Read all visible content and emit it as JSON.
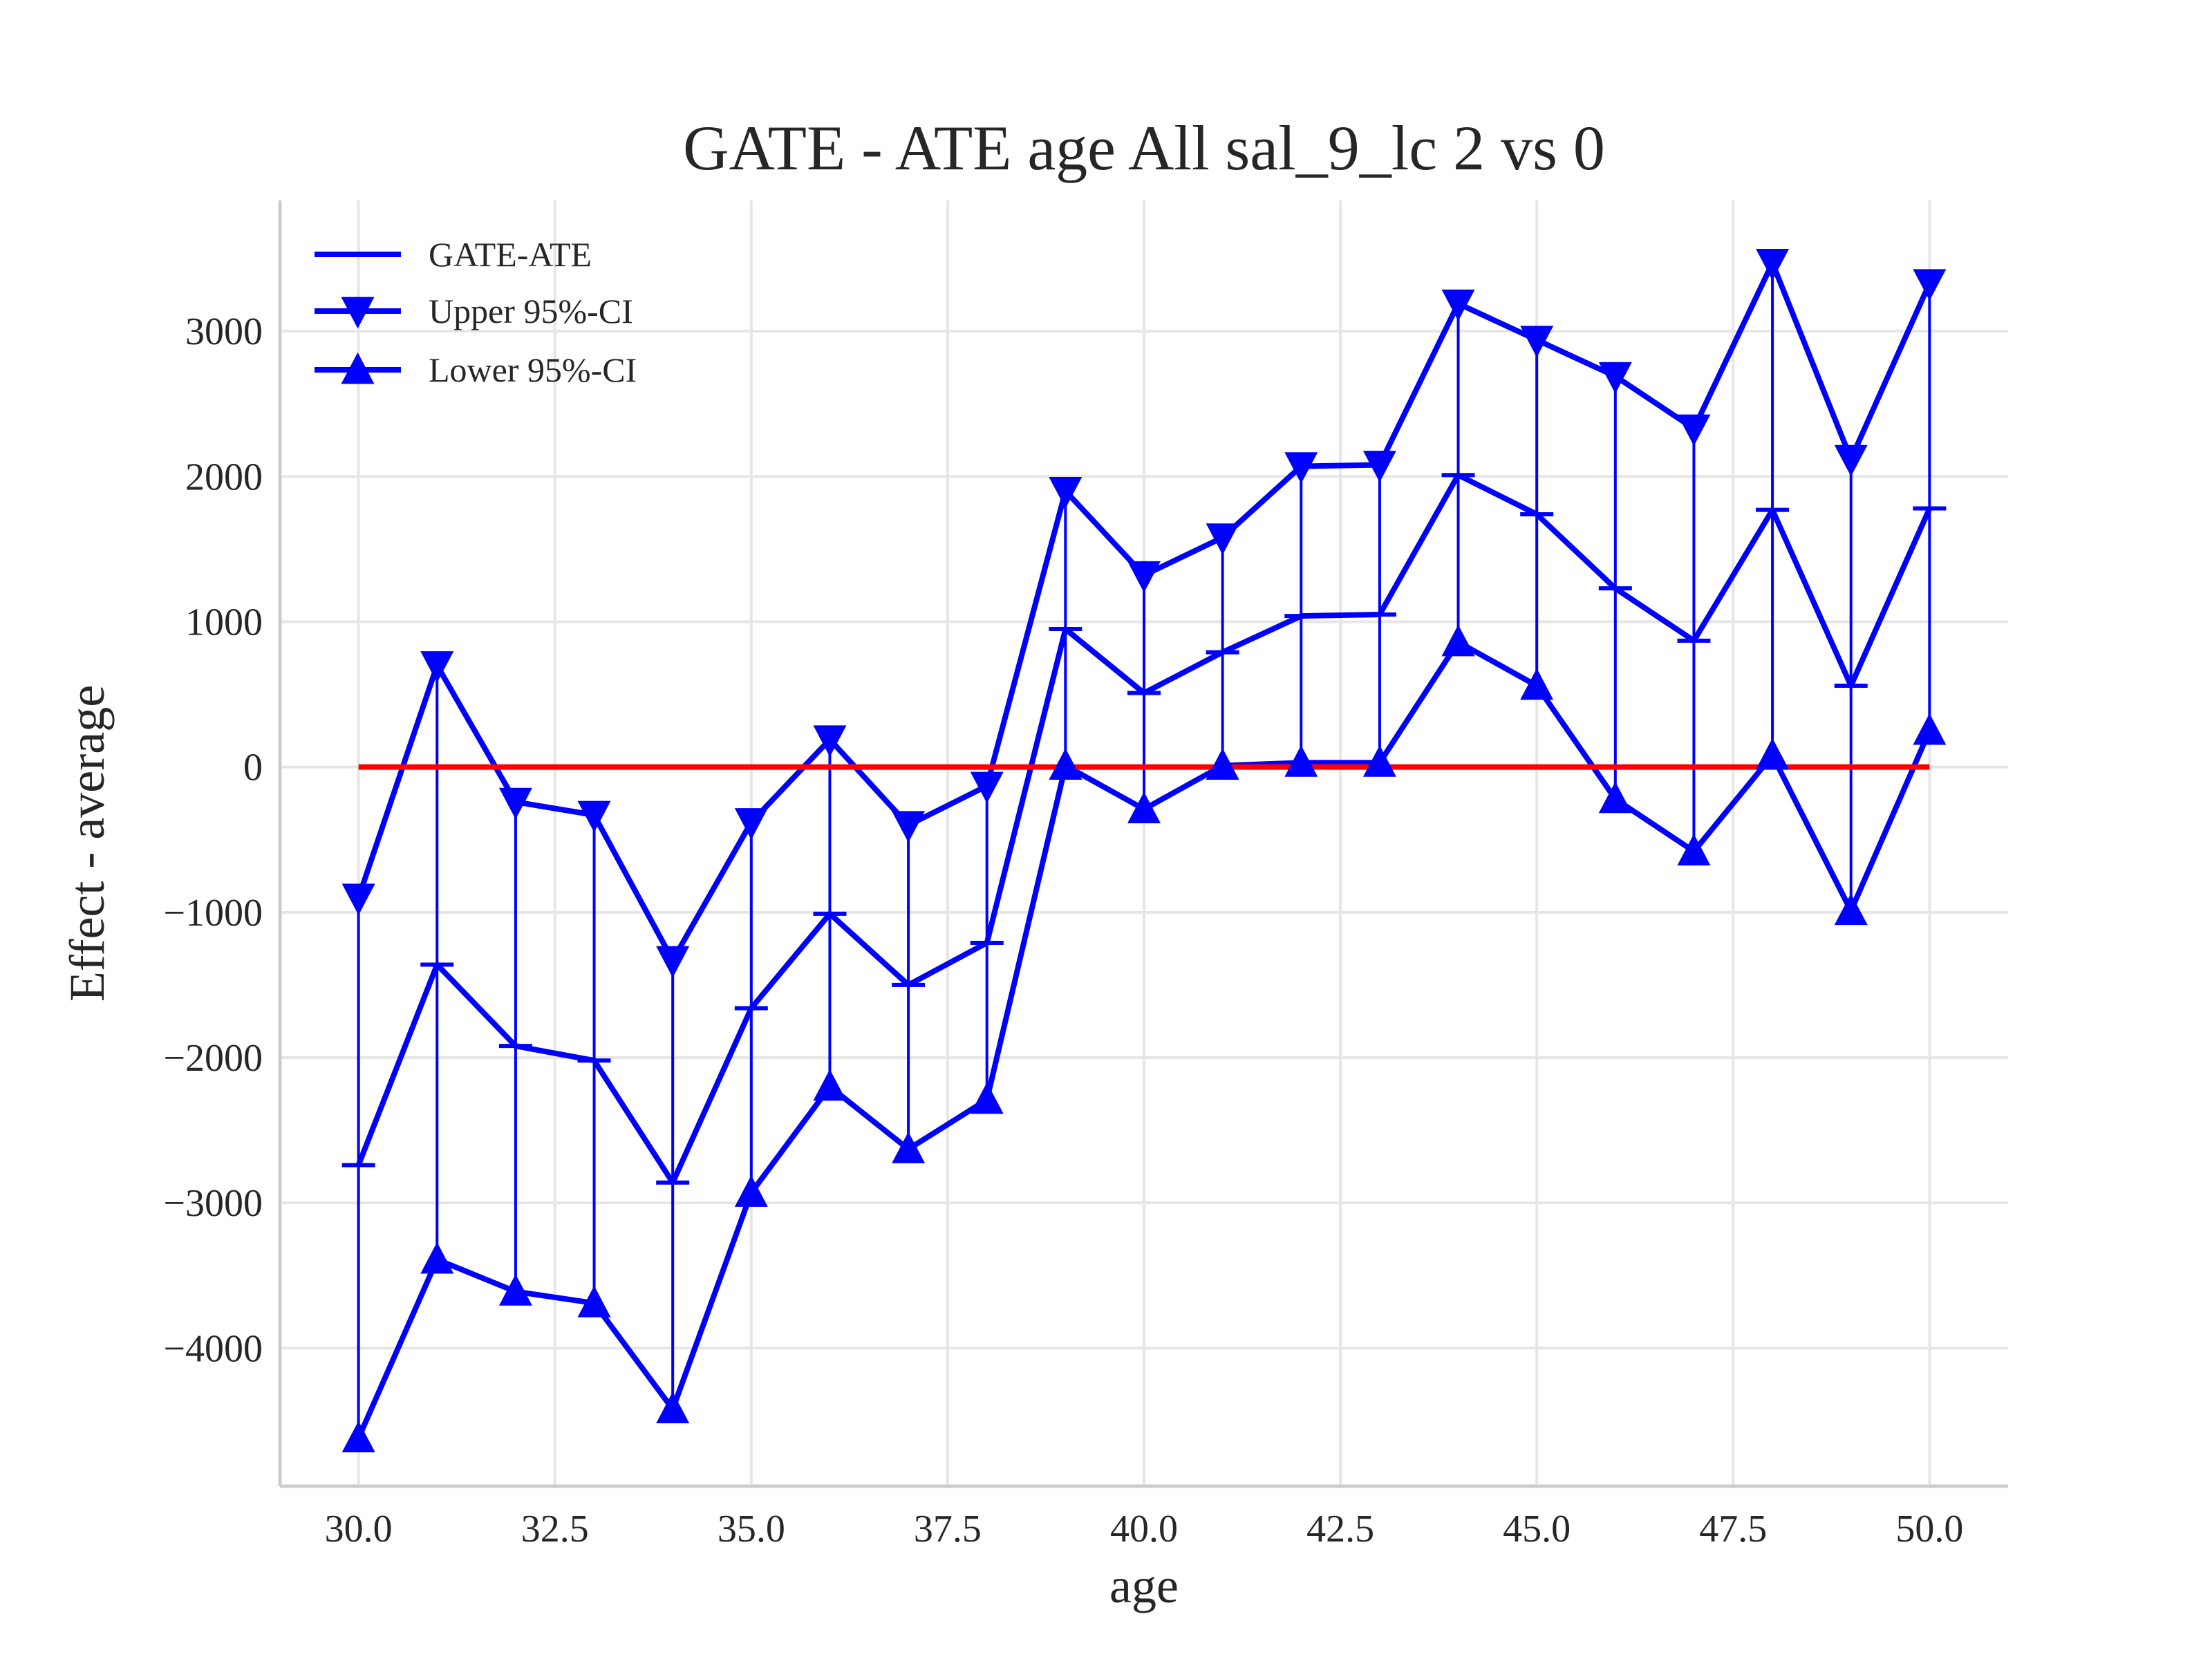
{
  "chart_data": {
    "type": "line",
    "title": "GATE - ATE age All sal_9_lc  2 vs 0",
    "xlabel": "age",
    "ylabel": "Effect - average",
    "xlim": [
      29.0,
      51.0
    ],
    "ylim": [
      -4950,
      3900
    ],
    "x_ticks": [
      30.0,
      32.5,
      35.0,
      37.5,
      40.0,
      42.5,
      45.0,
      47.5,
      50.0
    ],
    "x_tick_labels": [
      "30.0",
      "32.5",
      "35.0",
      "37.5",
      "40.0",
      "42.5",
      "45.0",
      "47.5",
      "50.0"
    ],
    "y_ticks": [
      -4000,
      -3000,
      -2000,
      -1000,
      0,
      1000,
      2000,
      3000
    ],
    "y_tick_labels": [
      "−4000",
      "−3000",
      "−2000",
      "−1000",
      "0",
      "1000",
      "2000",
      "3000"
    ],
    "grid": true,
    "legend_position": "top-left",
    "x": [
      30,
      31,
      32,
      33,
      34,
      35,
      36,
      37,
      38,
      39,
      40,
      41,
      42,
      43,
      44,
      45,
      46,
      47,
      48,
      49,
      50
    ],
    "series": [
      {
        "name": "GATE-ATE",
        "color": "#0000ff",
        "marker": "hline",
        "values": [
          -2740,
          -1360,
          -1920,
          -2020,
          -2860,
          -1660,
          -1010,
          -1500,
          -1210,
          950,
          510,
          790,
          1040,
          1050,
          2010,
          1740,
          1230,
          870,
          1770,
          560,
          1780
        ]
      },
      {
        "name": "Upper 95%-CI",
        "color": "#0000ff",
        "marker": "triangle-down",
        "values": [
          -900,
          700,
          -240,
          -330,
          -1330,
          -380,
          190,
          -400,
          -130,
          1900,
          1320,
          1580,
          2070,
          2080,
          3190,
          2940,
          2690,
          2330,
          3470,
          2120,
          3330
        ]
      },
      {
        "name": "Lower 95%-CI",
        "color": "#0000ff",
        "marker": "triangle-up",
        "values": [
          -4620,
          -3390,
          -3610,
          -3690,
          -4420,
          -2930,
          -2200,
          -2630,
          -2290,
          10,
          -290,
          10,
          30,
          30,
          860,
          560,
          -220,
          -580,
          80,
          -990,
          250
        ]
      }
    ],
    "reference_line": {
      "y": 0,
      "x_range": [
        30,
        50
      ],
      "color": "#ff0000"
    }
  }
}
